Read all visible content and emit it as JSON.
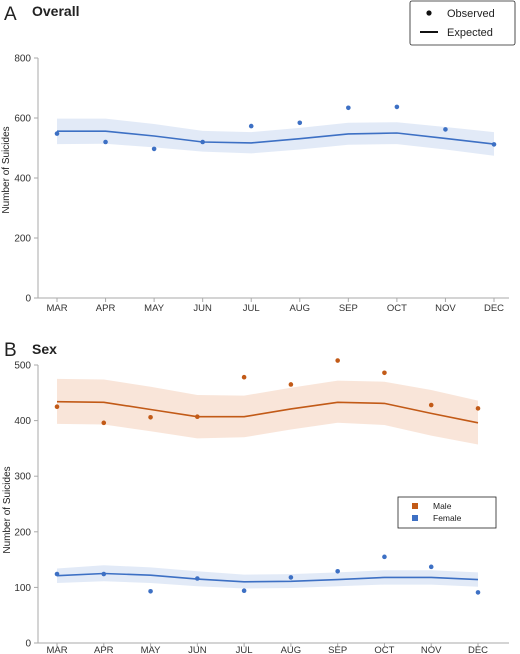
{
  "chart_data": [
    {
      "panel_letter": "A",
      "title": "Overall",
      "type": "line",
      "ylabel": "Number of Suicides",
      "categories": [
        "MAR",
        "APR",
        "MAY",
        "JUN",
        "JUL",
        "AUG",
        "SEP",
        "OCT",
        "NOV",
        "DEC"
      ],
      "ylim": [
        0,
        800
      ],
      "yticks": [
        0,
        200,
        400,
        600,
        800
      ],
      "grid": false,
      "legend": {
        "placement": "top-right",
        "entries": [
          "Observed",
          "Expected"
        ]
      },
      "series": [
        {
          "name": "Overall",
          "color": "#3d70c4",
          "band_color": "#dde6f6",
          "expected": [
            556,
            556,
            540,
            520,
            517,
            531,
            547,
            550,
            532,
            513
          ],
          "lower": [
            513,
            514,
            502,
            488,
            482,
            495,
            511,
            513,
            495,
            474
          ],
          "upper": [
            598,
            598,
            580,
            557,
            553,
            567,
            584,
            586,
            570,
            553
          ],
          "observed": [
            548,
            520,
            497,
            520,
            573,
            584,
            634,
            637,
            562,
            512
          ]
        }
      ]
    },
    {
      "panel_letter": "B",
      "title": "Sex",
      "type": "line",
      "ylabel": "Number of Suicides",
      "categories": [
        "MAR",
        "APR",
        "MAY",
        "JUN",
        "JUL",
        "AUG",
        "SEP",
        "OCT",
        "NOV",
        "DEC"
      ],
      "ylim": [
        0,
        500
      ],
      "yticks": [
        0,
        100,
        200,
        300,
        400,
        500
      ],
      "grid": false,
      "legend": {
        "placement": "center-right",
        "entries": [
          "Male",
          "Female"
        ]
      },
      "series": [
        {
          "name": "Male",
          "color": "#c25a17",
          "band_color": "#f8e1d2",
          "expected": [
            434,
            433,
            420,
            407,
            407,
            421,
            433,
            431,
            413,
            396
          ],
          "lower": [
            394,
            393,
            381,
            368,
            370,
            384,
            396,
            392,
            373,
            357
          ],
          "upper": [
            475,
            474,
            461,
            446,
            445,
            459,
            472,
            470,
            455,
            436
          ],
          "observed": [
            425,
            396,
            406,
            407,
            478,
            465,
            508,
            486,
            428,
            422
          ]
        },
        {
          "name": "Female",
          "color": "#3d70c4",
          "band_color": "#dde6f6",
          "expected": [
            121,
            125,
            122,
            115,
            110,
            111,
            114,
            118,
            118,
            114
          ],
          "lower": [
            108,
            111,
            108,
            102,
            98,
            99,
            102,
            105,
            105,
            101
          ],
          "upper": [
            134,
            140,
            136,
            129,
            123,
            124,
            127,
            131,
            131,
            127
          ],
          "observed": [
            124,
            124,
            93,
            116,
            94,
            118,
            129,
            155,
            137,
            91
          ]
        }
      ]
    }
  ]
}
